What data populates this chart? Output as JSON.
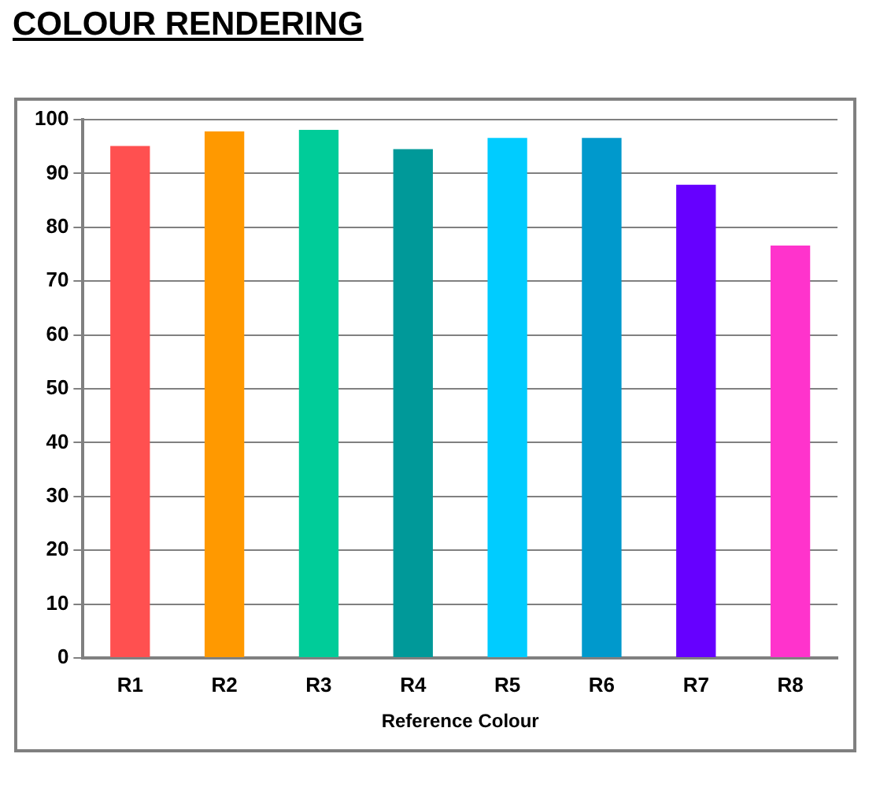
{
  "chart_data": {
    "type": "bar",
    "title": "COLOUR RENDERING",
    "xlabel": "Reference Colour",
    "categories": [
      "R1",
      "R2",
      "R3",
      "R4",
      "R5",
      "R6",
      "R7",
      "R8"
    ],
    "values": [
      95.1,
      97.8,
      98.1,
      94.5,
      96.6,
      96.6,
      87.9,
      76.6
    ],
    "colors": [
      "#ff5050",
      "#ff9900",
      "#00cc99",
      "#009999",
      "#00ccff",
      "#0099cc",
      "#6600ff",
      "#ff33cc"
    ],
    "ylim": [
      0,
      100
    ],
    "yticks": [
      0,
      10,
      20,
      30,
      40,
      50,
      60,
      70,
      80,
      90,
      100
    ],
    "grid": "y",
    "legend": false
  }
}
